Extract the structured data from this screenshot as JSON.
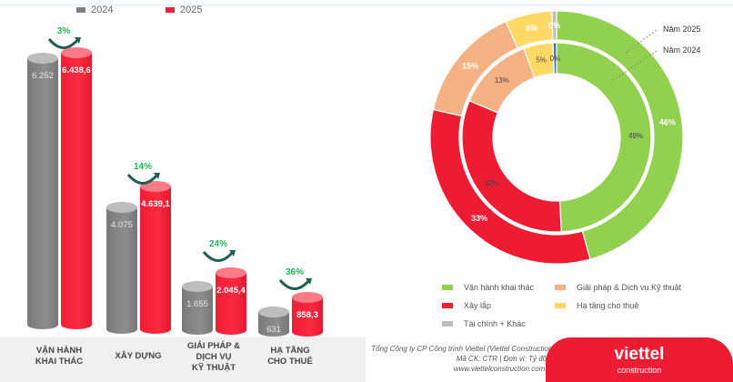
{
  "legend": [
    {
      "label": "2024",
      "color": "#808080"
    },
    {
      "label": "2025",
      "color": "#f21d36"
    }
  ],
  "chart_data": [
    {
      "type": "bar",
      "title": "",
      "categories": [
        "VẬN HÀNH KHAI THÁC",
        "XÂY DỰNG",
        "GIẢI PHÁP & DỊCH VỤ KỸ THUẬT",
        "HẠ TẦNG CHO THUÊ"
      ],
      "series": [
        {
          "name": "2024",
          "values": [
            6252,
            4075,
            1655,
            631
          ],
          "labels": [
            "6.252",
            "4.075",
            "1.655",
            "631"
          ]
        },
        {
          "name": "2025",
          "values": [
            6438.6,
            4639.1,
            2045.4,
            858.3
          ],
          "labels": [
            "6.438,6",
            "4.639,1",
            "2.045,4",
            "858,3"
          ]
        }
      ],
      "growth": [
        "3%",
        "14%",
        "24%",
        "36%"
      ],
      "category_lines": [
        [
          "VẬN HÀNH",
          "KHAI THÁC"
        ],
        [
          "XÂY DỰNG"
        ],
        [
          "GIẢI PHÁP &",
          "DỊCH VỤ",
          "KỸ THUẬT"
        ],
        [
          "HẠ TẦNG",
          "CHO THUÊ"
        ]
      ]
    },
    {
      "type": "pie",
      "title": "",
      "categories": [
        "Vận hành khai thác",
        "Xây lắp",
        "Giải pháp & Dịch vụ Kỹ thuật",
        "Hạ tầng cho thuê",
        "Tài chính + Khác"
      ],
      "colors": [
        "#92d050",
        "#ed1c33",
        "#f4b183",
        "#ffd966",
        "#bfbfbf"
      ],
      "series": [
        {
          "name": "Năm 2025",
          "ring": "outer",
          "values": [
            46,
            33,
            15,
            6,
            0
          ],
          "labels": [
            "46%",
            "33%",
            "15%",
            "6%",
            "0%"
          ]
        },
        {
          "name": "Năm 2024",
          "ring": "inner",
          "values": [
            49,
            32,
            13,
            5,
            0
          ],
          "labels": [
            "49%",
            "32%",
            "13%",
            "5%",
            "0%"
          ],
          "other_color": "#4472c4"
        }
      ]
    }
  ],
  "footer": {
    "company": "Tổng Công ty CP Công trình Viettel (Viettel Construction)",
    "code": "Mã CK: CTR  |  Đơn vị: Tỷ đồng",
    "website": "www.viettelconstruction.com.vn"
  },
  "logo": {
    "brand": "viettel",
    "sub": "construction"
  }
}
